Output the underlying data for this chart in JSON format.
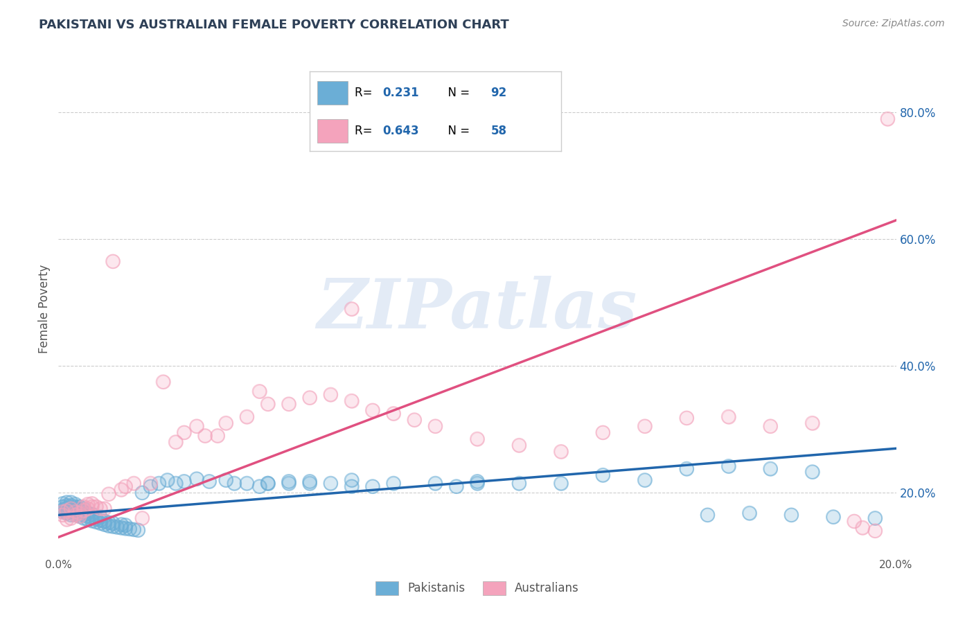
{
  "title": "PAKISTANI VS AUSTRALIAN FEMALE POVERTY CORRELATION CHART",
  "source_text": "Source: ZipAtlas.com",
  "ylabel": "Female Poverty",
  "r_blue": 0.231,
  "n_blue": 92,
  "r_pink": 0.643,
  "n_pink": 58,
  "xlim": [
    0.0,
    0.2
  ],
  "ylim": [
    0.1,
    0.88
  ],
  "xtick_positions": [
    0.0,
    0.2
  ],
  "xtick_labels": [
    "0.0%",
    "20.0%"
  ],
  "ytick_positions": [
    0.2,
    0.4,
    0.6,
    0.8
  ],
  "ytick_labels": [
    "20.0%",
    "40.0%",
    "60.0%",
    "80.0%"
  ],
  "color_blue": "#6baed6",
  "color_pink": "#f4a3bc",
  "line_blue": "#2166ac",
  "line_pink": "#e05080",
  "legend_label_blue": "Pakistanis",
  "legend_label_pink": "Australians",
  "watermark": "ZIPatlas",
  "title_color": "#2E4057",
  "ytick_color": "#2166ac",
  "xtick_color": "#555555",
  "axis_label_color": "#555555",
  "grid_color": "#cccccc",
  "blue_line_y0": 0.165,
  "blue_line_y1": 0.27,
  "pink_line_y0": 0.13,
  "pink_line_y1": 0.63,
  "blue_scatter_x": [
    0.001,
    0.001,
    0.001,
    0.001,
    0.002,
    0.002,
    0.002,
    0.002,
    0.002,
    0.003,
    0.003,
    0.003,
    0.003,
    0.003,
    0.004,
    0.004,
    0.004,
    0.004,
    0.004,
    0.005,
    0.005,
    0.005,
    0.005,
    0.006,
    0.006,
    0.006,
    0.006,
    0.007,
    0.007,
    0.007,
    0.008,
    0.008,
    0.008,
    0.009,
    0.009,
    0.01,
    0.01,
    0.01,
    0.011,
    0.011,
    0.012,
    0.012,
    0.013,
    0.013,
    0.014,
    0.015,
    0.015,
    0.016,
    0.016,
    0.017,
    0.018,
    0.019,
    0.02,
    0.022,
    0.024,
    0.026,
    0.028,
    0.03,
    0.033,
    0.036,
    0.04,
    0.042,
    0.045,
    0.048,
    0.05,
    0.055,
    0.06,
    0.065,
    0.07,
    0.075,
    0.05,
    0.055,
    0.06,
    0.07,
    0.08,
    0.09,
    0.095,
    0.1,
    0.13,
    0.15,
    0.16,
    0.17,
    0.18,
    0.1,
    0.11,
    0.12,
    0.14,
    0.155,
    0.165,
    0.175,
    0.185,
    0.195
  ],
  "blue_scatter_y": [
    0.17,
    0.173,
    0.178,
    0.183,
    0.168,
    0.172,
    0.176,
    0.18,
    0.185,
    0.165,
    0.17,
    0.175,
    0.18,
    0.185,
    0.165,
    0.17,
    0.175,
    0.178,
    0.182,
    0.163,
    0.168,
    0.173,
    0.178,
    0.16,
    0.165,
    0.17,
    0.175,
    0.158,
    0.163,
    0.168,
    0.156,
    0.161,
    0.166,
    0.154,
    0.159,
    0.152,
    0.157,
    0.162,
    0.15,
    0.155,
    0.148,
    0.153,
    0.147,
    0.152,
    0.146,
    0.145,
    0.15,
    0.144,
    0.149,
    0.143,
    0.142,
    0.141,
    0.2,
    0.21,
    0.215,
    0.22,
    0.215,
    0.218,
    0.222,
    0.218,
    0.22,
    0.215,
    0.215,
    0.21,
    0.215,
    0.218,
    0.215,
    0.215,
    0.21,
    0.21,
    0.215,
    0.215,
    0.218,
    0.22,
    0.215,
    0.215,
    0.21,
    0.218,
    0.228,
    0.238,
    0.242,
    0.238,
    0.233,
    0.215,
    0.215,
    0.215,
    0.22,
    0.165,
    0.168,
    0.165,
    0.162,
    0.16
  ],
  "pink_scatter_x": [
    0.001,
    0.001,
    0.002,
    0.002,
    0.003,
    0.003,
    0.004,
    0.004,
    0.005,
    0.005,
    0.006,
    0.006,
    0.007,
    0.007,
    0.008,
    0.008,
    0.009,
    0.01,
    0.011,
    0.012,
    0.013,
    0.015,
    0.016,
    0.018,
    0.02,
    0.022,
    0.025,
    0.028,
    0.03,
    0.033,
    0.035,
    0.038,
    0.04,
    0.045,
    0.048,
    0.05,
    0.055,
    0.06,
    0.065,
    0.07,
    0.07,
    0.075,
    0.08,
    0.085,
    0.09,
    0.1,
    0.11,
    0.12,
    0.13,
    0.14,
    0.15,
    0.16,
    0.17,
    0.18,
    0.19,
    0.192,
    0.195,
    0.198
  ],
  "pink_scatter_y": [
    0.165,
    0.17,
    0.158,
    0.172,
    0.16,
    0.175,
    0.165,
    0.17,
    0.163,
    0.168,
    0.172,
    0.178,
    0.175,
    0.182,
    0.178,
    0.183,
    0.178,
    0.175,
    0.175,
    0.198,
    0.565,
    0.205,
    0.21,
    0.215,
    0.16,
    0.215,
    0.375,
    0.28,
    0.295,
    0.305,
    0.29,
    0.29,
    0.31,
    0.32,
    0.36,
    0.34,
    0.34,
    0.35,
    0.355,
    0.345,
    0.49,
    0.33,
    0.325,
    0.315,
    0.305,
    0.285,
    0.275,
    0.265,
    0.295,
    0.305,
    0.318,
    0.32,
    0.305,
    0.31,
    0.155,
    0.145,
    0.14,
    0.79
  ]
}
